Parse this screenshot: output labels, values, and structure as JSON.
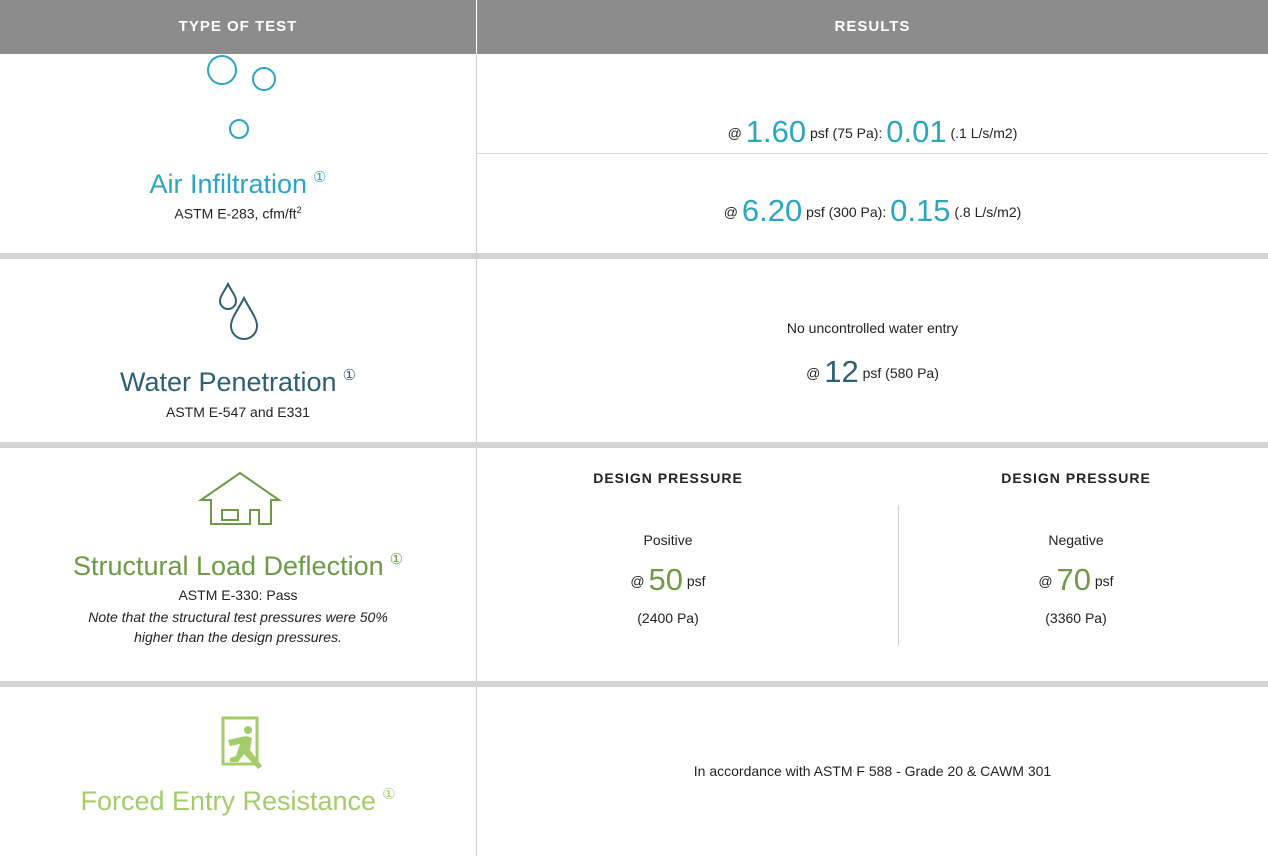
{
  "header": {
    "type_of_test": "TYPE OF TEST",
    "results": "RESULTS"
  },
  "rows": [
    {
      "title": "Air Infiltration",
      "note_marker": "①",
      "standard": "ASTM E-283, cfm/ft",
      "standard_sup": "2",
      "results": [
        {
          "at": "@",
          "pressure": "1.60",
          "unit": "psf (75 Pa):",
          "value": "0.01",
          "metric": "(.1 L/s/m2)"
        },
        {
          "at": "@",
          "pressure": "6.20",
          "unit": "psf (300 Pa):",
          "value": "0.15",
          "metric": "(.8 L/s/m2)"
        }
      ]
    },
    {
      "title": "Water Penetration",
      "note_marker": "①",
      "standard": "ASTM E-547 and E331",
      "result_text": "No uncontrolled water entry",
      "at": "@",
      "pressure": "12",
      "unit": "psf (580 Pa)"
    },
    {
      "title": "Structural Load Deflection",
      "note_marker": "①",
      "standard": "ASTM E-330: Pass",
      "note": "Note that the structural test pressures were 50% higher than the design pressures.",
      "columns": [
        {
          "heading": "DESIGN PRESSURE",
          "label": "Positive",
          "at": "@",
          "value": "50",
          "unit": "psf",
          "metric": "(2400 Pa)"
        },
        {
          "heading": "DESIGN PRESSURE",
          "label": "Negative",
          "at": "@",
          "value": "70",
          "unit": "psf",
          "metric": "(3360 Pa)"
        }
      ]
    },
    {
      "title": "Forced Entry Resistance",
      "note_marker": "①",
      "result_text": "In accordance with ASTM F 588 - Grade 20 & CAWM 301"
    }
  ]
}
